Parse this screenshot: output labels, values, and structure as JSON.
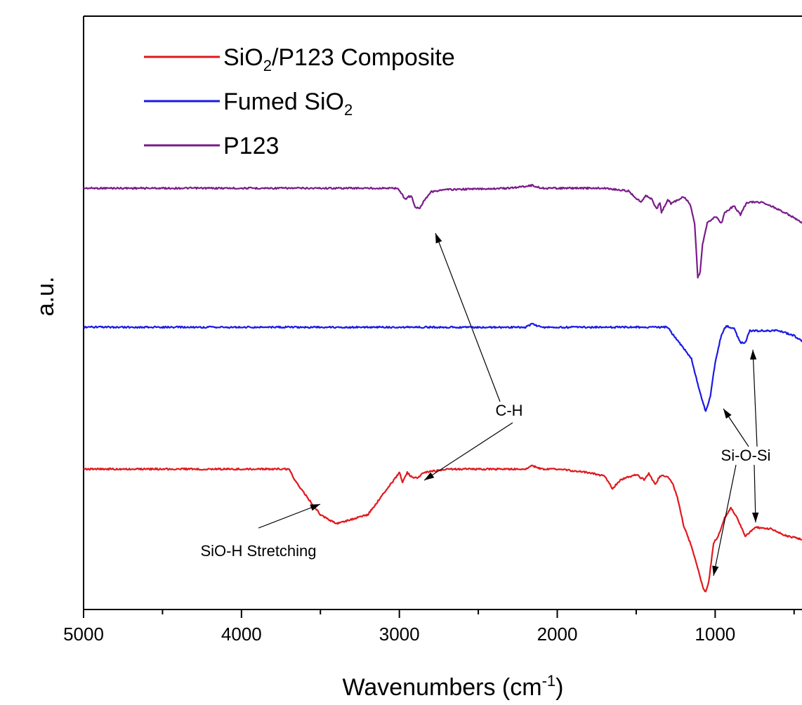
{
  "chart_data": {
    "type": "line",
    "xlabel": "Wavenumbers (cm",
    "xlabel_sup": "-1",
    "xlabel_end": ")",
    "ylabel": "a.u.",
    "xlim": [
      5000,
      450
    ],
    "x_reversed": true,
    "y_scale": "arbitrary (stacked, offset traces)",
    "grid": false,
    "legend_position": "top-left",
    "x_ticks": [
      "5000",
      "4000",
      "3000",
      "2000",
      "1000"
    ],
    "legend": [
      {
        "color": "#e0191e",
        "parts": [
          {
            "t": "SiO"
          },
          {
            "t": "2",
            "sub": true
          },
          {
            "t": "/P123 Composite"
          }
        ]
      },
      {
        "color": "#1a1ae6",
        "parts": [
          {
            "t": "Fumed SiO"
          },
          {
            "t": "2",
            "sub": true
          }
        ]
      },
      {
        "color": "#7a1b8a",
        "parts": [
          {
            "t": "P123"
          }
        ]
      }
    ],
    "series": [
      {
        "name": "P123",
        "color": "#7a1b8a",
        "offset": 2,
        "points": [
          [
            5000,
            0
          ],
          [
            3100,
            0
          ],
          [
            3010,
            0
          ],
          [
            2980,
            -0.1
          ],
          [
            2960,
            -0.16
          ],
          [
            2945,
            -0.12
          ],
          [
            2920,
            -0.12
          ],
          [
            2900,
            -0.28
          ],
          [
            2870,
            -0.28
          ],
          [
            2845,
            -0.18
          ],
          [
            2800,
            -0.05
          ],
          [
            2700,
            -0.02
          ],
          [
            2500,
            -0.01
          ],
          [
            2300,
            0
          ],
          [
            2160,
            0.04
          ],
          [
            2100,
            0
          ],
          [
            2000,
            0
          ],
          [
            1700,
            0
          ],
          [
            1550,
            -0.04
          ],
          [
            1470,
            -0.2
          ],
          [
            1440,
            -0.1
          ],
          [
            1400,
            -0.16
          ],
          [
            1370,
            -0.3
          ],
          [
            1350,
            -0.2
          ],
          [
            1340,
            -0.35
          ],
          [
            1300,
            -0.16
          ],
          [
            1280,
            -0.22
          ],
          [
            1240,
            -0.17
          ],
          [
            1200,
            -0.12
          ],
          [
            1160,
            -0.22
          ],
          [
            1130,
            -0.5
          ],
          [
            1110,
            -1.28
          ],
          [
            1095,
            -1.2
          ],
          [
            1080,
            -0.8
          ],
          [
            1050,
            -0.5
          ],
          [
            1000,
            -0.4
          ],
          [
            960,
            -0.5
          ],
          [
            940,
            -0.35
          ],
          [
            880,
            -0.25
          ],
          [
            840,
            -0.38
          ],
          [
            800,
            -0.2
          ],
          [
            700,
            -0.2
          ],
          [
            600,
            -0.3
          ],
          [
            500,
            -0.42
          ],
          [
            450,
            -0.5
          ]
        ]
      },
      {
        "name": "Fumed SiO2",
        "color": "#1a1ae6",
        "offset": 1,
        "points": [
          [
            5000,
            0
          ],
          [
            3500,
            0
          ],
          [
            3000,
            0
          ],
          [
            2500,
            0
          ],
          [
            2200,
            0
          ],
          [
            2160,
            0.05
          ],
          [
            2100,
            0
          ],
          [
            2000,
            0
          ],
          [
            1500,
            0
          ],
          [
            1300,
            0
          ],
          [
            1270,
            -0.1
          ],
          [
            1200,
            -0.3
          ],
          [
            1150,
            -0.45
          ],
          [
            1100,
            -0.9
          ],
          [
            1060,
            -1.2
          ],
          [
            1030,
            -0.98
          ],
          [
            1000,
            -0.5
          ],
          [
            960,
            -0.1
          ],
          [
            930,
            0.02
          ],
          [
            880,
            -0.02
          ],
          [
            860,
            -0.12
          ],
          [
            840,
            -0.22
          ],
          [
            810,
            -0.22
          ],
          [
            780,
            -0.05
          ],
          [
            700,
            -0.05
          ],
          [
            600,
            -0.05
          ],
          [
            500,
            -0.12
          ],
          [
            450,
            -0.2
          ]
        ]
      },
      {
        "name": "SiO2/P123 Composite",
        "color": "#e0191e",
        "offset": 0,
        "points": [
          [
            5000,
            0
          ],
          [
            3700,
            0
          ],
          [
            3650,
            -0.2
          ],
          [
            3500,
            -0.65
          ],
          [
            3400,
            -0.78
          ],
          [
            3200,
            -0.65
          ],
          [
            3050,
            -0.2
          ],
          [
            3000,
            -0.05
          ],
          [
            2980,
            -0.18
          ],
          [
            2950,
            -0.05
          ],
          [
            2920,
            -0.12
          ],
          [
            2880,
            -0.12
          ],
          [
            2850,
            -0.05
          ],
          [
            2700,
            0
          ],
          [
            2400,
            0
          ],
          [
            2200,
            0
          ],
          [
            2160,
            0.05
          ],
          [
            2100,
            0
          ],
          [
            2000,
            0
          ],
          [
            1800,
            -0.05
          ],
          [
            1700,
            -0.1
          ],
          [
            1650,
            -0.28
          ],
          [
            1600,
            -0.15
          ],
          [
            1500,
            -0.08
          ],
          [
            1450,
            -0.15
          ],
          [
            1420,
            -0.06
          ],
          [
            1380,
            -0.22
          ],
          [
            1350,
            -0.1
          ],
          [
            1300,
            -0.1
          ],
          [
            1270,
            -0.2
          ],
          [
            1240,
            -0.4
          ],
          [
            1200,
            -0.8
          ],
          [
            1150,
            -1.1
          ],
          [
            1100,
            -1.5
          ],
          [
            1075,
            -1.7
          ],
          [
            1060,
            -1.75
          ],
          [
            1040,
            -1.6
          ],
          [
            1010,
            -1.05
          ],
          [
            980,
            -0.95
          ],
          [
            940,
            -0.7
          ],
          [
            900,
            -0.55
          ],
          [
            860,
            -0.7
          ],
          [
            810,
            -0.95
          ],
          [
            790,
            -0.92
          ],
          [
            750,
            -0.83
          ],
          [
            650,
            -0.85
          ],
          [
            550,
            -0.95
          ],
          [
            450,
            -1
          ]
        ]
      }
    ],
    "annotations": [
      {
        "text": "C-H"
      },
      {
        "text": "Si-O-Si"
      },
      {
        "text": "SiO-H Stretching"
      }
    ]
  }
}
